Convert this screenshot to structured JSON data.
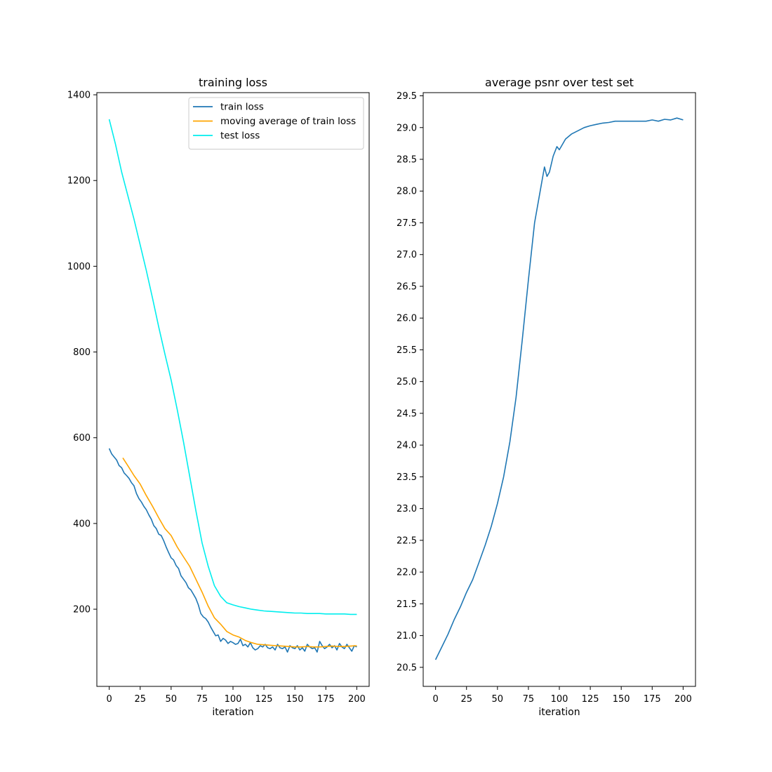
{
  "chart_data": [
    {
      "type": "line",
      "title": "training loss",
      "xlabel": "iteration",
      "ylabel": "",
      "xlim": [
        -10,
        210
      ],
      "ylim": [
        20,
        1405
      ],
      "xticks": [
        0,
        25,
        50,
        75,
        100,
        125,
        150,
        175,
        200
      ],
      "yticks": [
        200,
        400,
        600,
        800,
        1000,
        1200,
        1400
      ],
      "grid": false,
      "legend": "top-right",
      "series": [
        {
          "name": "train loss",
          "color": "#1f77b4",
          "x": [
            0,
            2,
            4,
            6,
            8,
            10,
            12,
            14,
            16,
            18,
            20,
            22,
            24,
            26,
            28,
            30,
            32,
            34,
            36,
            38,
            40,
            42,
            44,
            46,
            48,
            50,
            52,
            54,
            56,
            58,
            60,
            62,
            64,
            66,
            68,
            70,
            72,
            74,
            76,
            78,
            80,
            82,
            84,
            86,
            88,
            90,
            92,
            94,
            96,
            98,
            100,
            102,
            104,
            106,
            108,
            110,
            112,
            114,
            116,
            118,
            120,
            122,
            124,
            126,
            128,
            130,
            132,
            134,
            136,
            138,
            140,
            142,
            144,
            146,
            148,
            150,
            152,
            154,
            156,
            158,
            160,
            162,
            164,
            166,
            168,
            170,
            172,
            174,
            176,
            178,
            180,
            182,
            184,
            186,
            188,
            190,
            192,
            194,
            196,
            198,
            200
          ],
          "y": [
            575,
            562,
            555,
            548,
            535,
            530,
            518,
            512,
            505,
            495,
            488,
            470,
            458,
            450,
            440,
            432,
            420,
            410,
            395,
            388,
            375,
            372,
            360,
            345,
            332,
            320,
            315,
            302,
            295,
            278,
            270,
            262,
            250,
            245,
            235,
            225,
            210,
            190,
            182,
            178,
            170,
            158,
            148,
            138,
            140,
            125,
            132,
            128,
            120,
            125,
            122,
            118,
            120,
            130,
            115,
            118,
            112,
            122,
            110,
            105,
            108,
            115,
            112,
            118,
            110,
            108,
            112,
            105,
            118,
            110,
            108,
            112,
            100,
            115,
            110,
            108,
            115,
            105,
            110,
            102,
            118,
            112,
            108,
            110,
            100,
            125,
            115,
            108,
            112,
            118,
            110,
            115,
            105,
            120,
            112,
            108,
            118,
            110,
            102,
            115,
            112
          ]
        },
        {
          "name": "moving average of train loss",
          "color": "#ffa500",
          "x": [
            11,
            15,
            20,
            25,
            30,
            35,
            40,
            45,
            50,
            55,
            60,
            65,
            70,
            75,
            80,
            85,
            90,
            95,
            100,
            105,
            110,
            115,
            120,
            125,
            130,
            135,
            140,
            145,
            150,
            155,
            160,
            165,
            170,
            175,
            180,
            185,
            190,
            195,
            200
          ],
          "y": [
            553,
            535,
            512,
            492,
            465,
            440,
            413,
            388,
            372,
            345,
            322,
            300,
            270,
            240,
            207,
            180,
            165,
            148,
            140,
            135,
            127,
            122,
            118,
            117,
            116,
            115,
            114,
            113,
            112,
            112,
            113,
            112,
            112,
            113,
            114,
            113,
            113,
            114,
            115
          ]
        },
        {
          "name": "test loss",
          "color": "#00eeee",
          "x": [
            0,
            5,
            10,
            15,
            20,
            25,
            30,
            35,
            40,
            45,
            50,
            55,
            60,
            65,
            70,
            75,
            80,
            85,
            90,
            95,
            100,
            105,
            110,
            115,
            120,
            125,
            130,
            135,
            140,
            145,
            150,
            155,
            160,
            165,
            170,
            175,
            180,
            185,
            190,
            195,
            200
          ],
          "y": [
            1343,
            1285,
            1220,
            1165,
            1110,
            1050,
            990,
            925,
            858,
            795,
            735,
            665,
            590,
            510,
            430,
            355,
            300,
            255,
            230,
            215,
            210,
            206,
            203,
            200,
            198,
            196,
            195,
            194,
            193,
            192,
            191,
            191,
            190,
            190,
            190,
            189,
            189,
            189,
            189,
            188,
            188
          ]
        }
      ]
    },
    {
      "type": "line",
      "title": "average psnr over test set",
      "xlabel": "iteration",
      "ylabel": "",
      "xlim": [
        -10,
        210
      ],
      "ylim": [
        20.2,
        29.55
      ],
      "xticks": [
        0,
        25,
        50,
        75,
        100,
        125,
        150,
        175,
        200
      ],
      "yticks": [
        20.5,
        21.0,
        21.5,
        22.0,
        22.5,
        23.0,
        23.5,
        24.0,
        24.5,
        25.0,
        25.5,
        26.0,
        26.5,
        27.0,
        27.5,
        28.0,
        28.5,
        29.0,
        29.5
      ],
      "grid": false,
      "series": [
        {
          "name": "",
          "color": "#1f77b4",
          "x": [
            0,
            5,
            10,
            15,
            20,
            25,
            30,
            35,
            40,
            45,
            50,
            55,
            60,
            65,
            70,
            75,
            80,
            85,
            88,
            90,
            92,
            95,
            98,
            100,
            105,
            110,
            115,
            120,
            125,
            130,
            135,
            140,
            145,
            150,
            155,
            160,
            165,
            170,
            175,
            180,
            185,
            190,
            195,
            200
          ],
          "y": [
            20.62,
            20.82,
            21.02,
            21.25,
            21.45,
            21.68,
            21.88,
            22.15,
            22.42,
            22.72,
            23.08,
            23.5,
            24.05,
            24.75,
            25.65,
            26.6,
            27.5,
            28.05,
            28.38,
            28.23,
            28.3,
            28.55,
            28.7,
            28.65,
            28.82,
            28.9,
            28.95,
            29.0,
            29.03,
            29.05,
            29.07,
            29.08,
            29.1,
            29.1,
            29.1,
            29.1,
            29.1,
            29.1,
            29.12,
            29.1,
            29.13,
            29.12,
            29.15,
            29.12
          ]
        }
      ]
    }
  ]
}
